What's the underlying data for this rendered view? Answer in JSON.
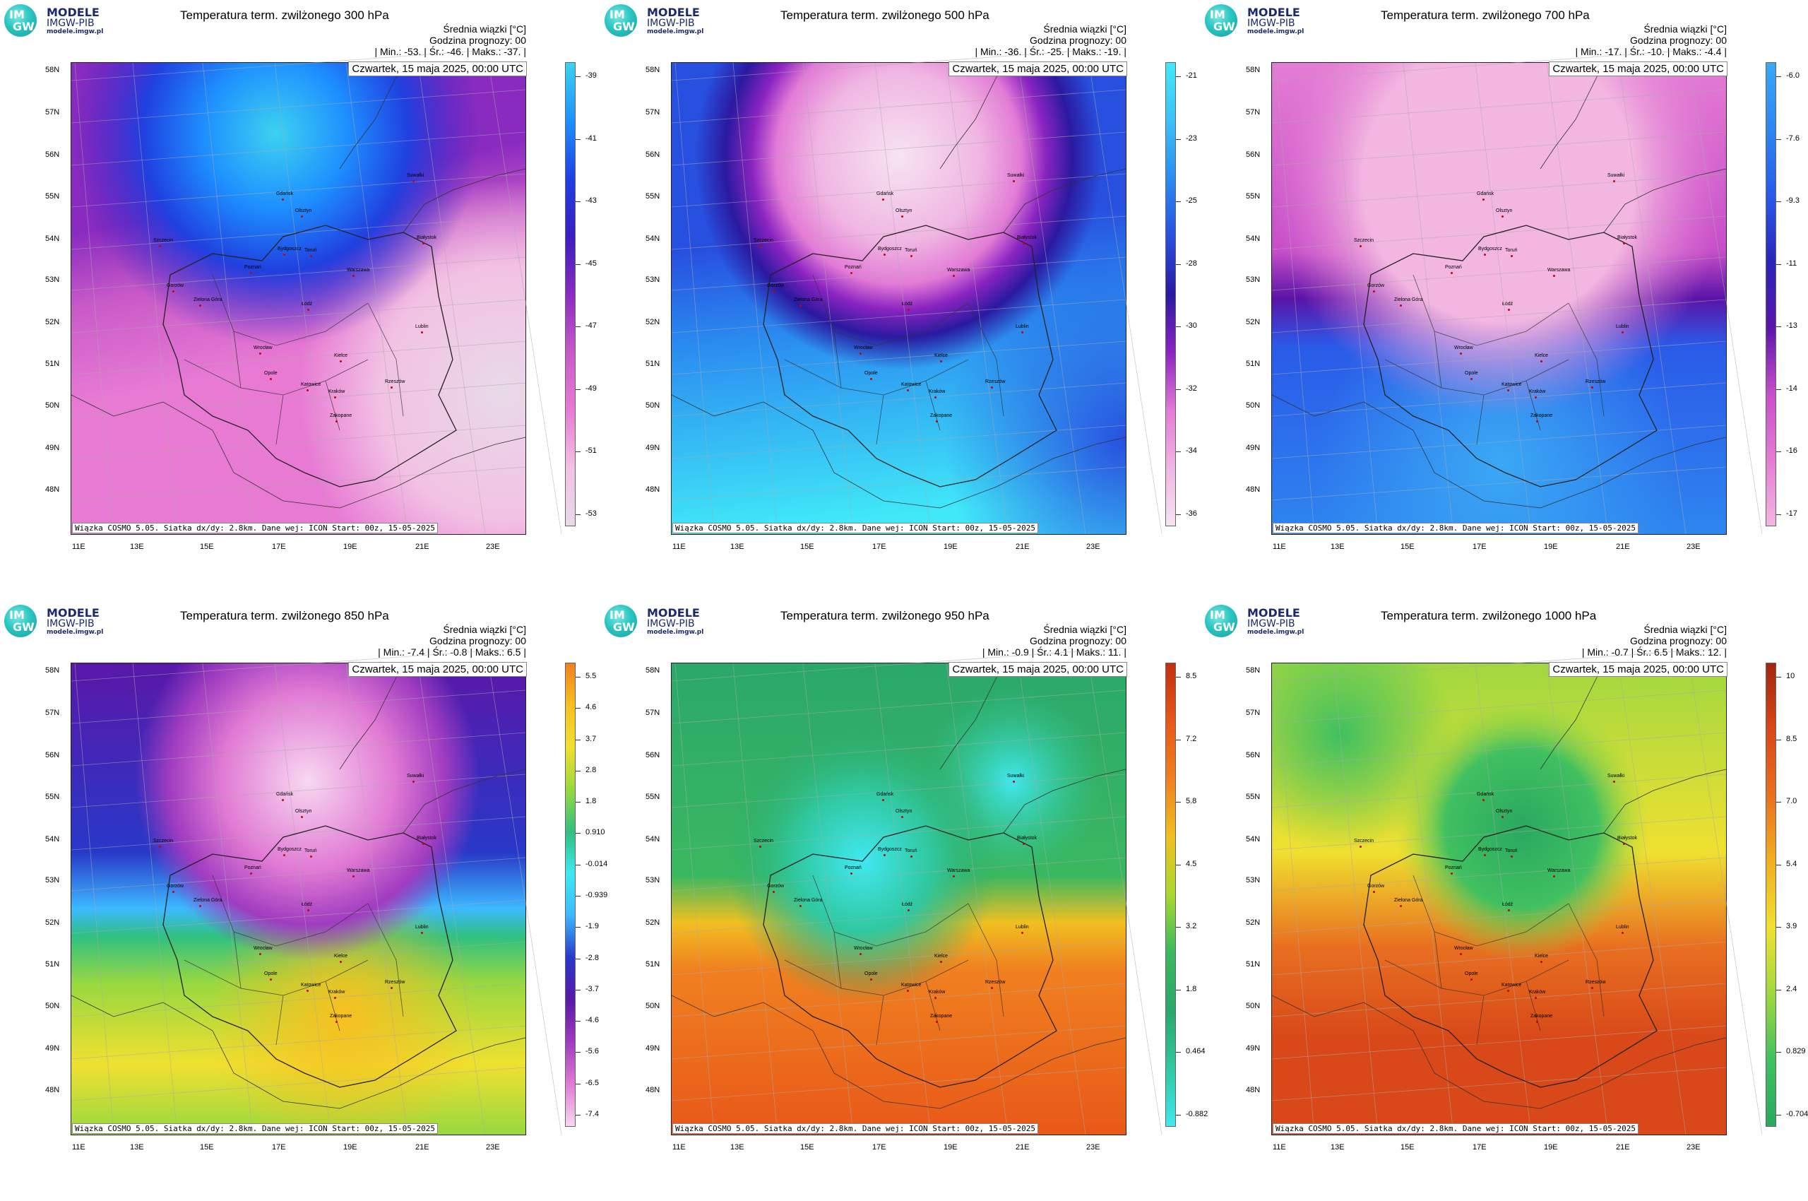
{
  "logo": {
    "line1": "MODELE",
    "line2": "IMGW-PIB",
    "line3": "modele.imgw.pl",
    "im": "IM",
    "gw": "GW"
  },
  "panels": [
    {
      "title": "Temperatura term. zwilżonego 300 hPa",
      "header1": "Średnia wiązki [°C]",
      "header2": "Godzina prognozy: 00",
      "header3": "| Min.:    -53. | Śr.:    -46. | Maks.:    -37. |",
      "date": "Czwartek, 15 maja 2025, 00:00 UTC",
      "footer": "Wiązka COSMO 5.05. Siatka dx/dy: 2.8km. Dane wej: ICON Start: 00z, 15-05-2025",
      "colorbar": [
        "-39",
        "-41",
        "-43",
        "-45",
        "-47",
        "-49",
        "-51",
        "-53"
      ],
      "scheme": "cold300"
    },
    {
      "title": "Temperatura term. zwilżonego 500 hPa",
      "header1": "Średnia wiązki [°C]",
      "header2": "Godzina prognozy: 00",
      "header3": "| Min.:    -36. | Śr.:    -25. | Maks.:    -19. |",
      "date": "Czwartek, 15 maja 2025, 00:00 UTC",
      "footer": "Wiązka COSMO 5.05. Siatka dx/dy: 2.8km. Dane wej: ICON Start: 00z, 15-05-2025",
      "colorbar": [
        "-21",
        "-23",
        "-25",
        "-28",
        "-30",
        "-32",
        "-34",
        "-36"
      ],
      "scheme": "cold500"
    },
    {
      "title": "Temperatura term. zwilżonego 700 hPa",
      "header1": "Średnia wiązki [°C]",
      "header2": "Godzina prognozy: 00",
      "header3": "| Min.:    -17. | Śr.:    -10. | Maks.:    -4.4 |",
      "date": "Czwartek, 15 maja 2025, 00:00 UTC",
      "footer": "Wiązka COSMO 5.05. Siatka dx/dy: 2.8km. Dane wej: ICON Start: 00z, 15-05-2025",
      "colorbar": [
        "-6.0",
        "-7.6",
        "-9.3",
        "-11",
        "-13",
        "-14",
        "-16",
        "-17"
      ],
      "scheme": "cold700"
    },
    {
      "title": "Temperatura term. zwilżonego 850 hPa",
      "header1": "Średnia wiązki [°C]",
      "header2": "Godzina prognozy: 00",
      "header3": "| Min.:    -7.4 | Śr.:    -0.8 | Maks.:    6.5 |",
      "date": "Czwartek, 15 maja 2025, 00:00 UTC",
      "footer": "Wiązka COSMO 5.05. Siatka dx/dy: 2.8km. Dane wej: ICON Start: 00z, 15-05-2025",
      "colorbar": [
        "5.5",
        "4.6",
        "3.7",
        "2.8",
        "1.8",
        "0.910",
        "-0.014",
        "-0.939",
        "-1.9",
        "-2.8",
        "-3.7",
        "-4.6",
        "-5.6",
        "-6.5",
        "-7.4"
      ],
      "scheme": "mixed850"
    },
    {
      "title": "Temperatura term. zwilżonego 950 hPa",
      "header1": "Średnia wiązki [°C]",
      "header2": "Godzina prognozy: 00",
      "header3": "| Min.:    -0.9 | Śr.:    4.1 | Maks.:    11. |",
      "date": "Czwartek, 15 maja 2025, 00:00 UTC",
      "footer": "Wiązka COSMO 5.05. Siatka dx/dy: 2.8km. Dane wej: ICON Start: 00z, 15-05-2025",
      "colorbar": [
        "8.5",
        "7.2",
        "5.8",
        "4.5",
        "3.2",
        "1.8",
        "0.464",
        "-0.882"
      ],
      "scheme": "warm950"
    },
    {
      "title": "Temperatura term. zwilżonego 1000 hPa",
      "header1": "Średnia wiązki [°C]",
      "header2": "Godzina prognozy: 00",
      "header3": "| Min.:    -0.7 | Śr.:    6.5 | Maks.:    12. |",
      "date": "Czwartek, 15 maja 2025, 00:00 UTC",
      "footer": "Wiązka COSMO 5.05. Siatka dx/dy: 2.8km. Dane wej: ICON Start: 00z, 15-05-2025",
      "colorbar": [
        "10",
        "8.5",
        "7.0",
        "5.4",
        "3.9",
        "2.4",
        "0.829",
        "-0.704"
      ],
      "scheme": "warm1000"
    }
  ],
  "lat_labels": [
    "58N",
    "57N",
    "56N",
    "55N",
    "54N",
    "53N",
    "52N",
    "51N",
    "50N",
    "49N",
    "48N"
  ],
  "lon_labels": [
    "11E",
    "13E",
    "15E",
    "17E",
    "19E",
    "21E",
    "23E"
  ],
  "cities": [
    "Gdańsk",
    "Olsztyn",
    "Szczecin",
    "Bydgoszcz",
    "Toruń",
    "Białystok",
    "Poznań",
    "Warszawa",
    "Gorzów",
    "Zielona Góra",
    "Łódź",
    "Lublin",
    "Wrocław",
    "Kielce",
    "Opole",
    "Katowice",
    "Kraków",
    "Rzeszów",
    "Zakopane",
    "Suwałki"
  ],
  "colors": {
    "cold300": [
      "#e8d9e8",
      "#f2c1e3",
      "#e87ad4",
      "#c85ac8",
      "#8a2bc0",
      "#3a1ec0",
      "#2040e0",
      "#1e90ff",
      "#3cd2f0"
    ],
    "cold500": [
      "#f6e4f2",
      "#f0b6e2",
      "#e27ad6",
      "#8a24c0",
      "#2a1aa0",
      "#2850e0",
      "#2a8cf0",
      "#3ec0f8",
      "#40e8f8"
    ],
    "cold700": [
      "#f2b6e0",
      "#e47cd4",
      "#c64ec8",
      "#5a14a8",
      "#2a26b8",
      "#2a5ae8",
      "#2e86f0",
      "#3aa8f4"
    ],
    "mixed850": [
      "#f8d8f0",
      "#e07ad4",
      "#a03cc0",
      "#5a18a8",
      "#2838c8",
      "#3cb8ff",
      "#40e8f0",
      "#30c080",
      "#98d840",
      "#f0e030",
      "#f8c020",
      "#f08020"
    ],
    "warm950": [
      "#40e8f0",
      "#30c8a0",
      "#2aa86a",
      "#3ab860",
      "#a8d830",
      "#f0c020",
      "#f08020",
      "#e85818",
      "#c03010"
    ],
    "warm1000": [
      "#2aa860",
      "#40c060",
      "#a0d840",
      "#f0e030",
      "#f0b020",
      "#e87020",
      "#d84818",
      "#a02810"
    ]
  }
}
